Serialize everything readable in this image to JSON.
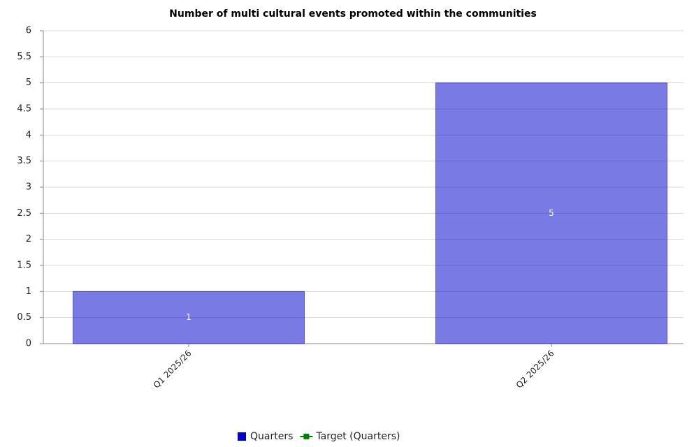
{
  "chart_data": {
    "type": "bar",
    "title": "Number of multi cultural events promoted within the communities",
    "categories": [
      "Q1 2025/26",
      "Q2 2025/26"
    ],
    "series": [
      {
        "name": "Quarters",
        "color": "#0000cc",
        "values": [
          1,
          5
        ]
      },
      {
        "name": "Target (Quarters)",
        "color": "#008000",
        "values": [
          null,
          null
        ]
      }
    ],
    "ylim": [
      0,
      6
    ],
    "yticks": [
      0,
      0.5,
      1,
      1.5,
      2,
      2.5,
      3,
      3.5,
      4,
      4.5,
      5,
      5.5,
      6
    ],
    "grid": true,
    "legend": "bottom"
  }
}
